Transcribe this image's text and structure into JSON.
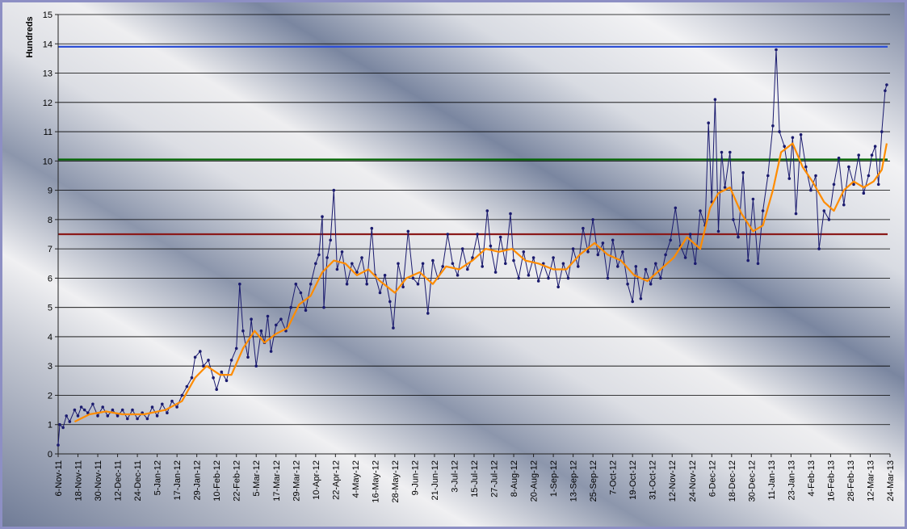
{
  "chart_data": {
    "type": "line",
    "ylabel": "Hundreds",
    "ylim": [
      0,
      15
    ],
    "yticks": [
      "0",
      "1",
      "2",
      "3",
      "4",
      "5",
      "6",
      "7",
      "8",
      "9",
      "10",
      "11",
      "12",
      "13",
      "14",
      "15"
    ],
    "x_start": "2011-11-06",
    "x_end": "2013-03-24",
    "xticks": [
      "6-Nov-11",
      "18-Nov-11",
      "30-Nov-11",
      "12-Dec-11",
      "24-Dec-11",
      "5-Jan-12",
      "17-Jan-12",
      "29-Jan-12",
      "10-Feb-12",
      "22-Feb-12",
      "5-Mar-12",
      "17-Mar-12",
      "29-Mar-12",
      "10-Apr-12",
      "22-Apr-12",
      "4-May-12",
      "16-May-12",
      "28-May-12",
      "9-Jun-12",
      "21-Jun-12",
      "3-Jul-12",
      "15-Jul-12",
      "27-Jul-12",
      "8-Aug-12",
      "20-Aug-12",
      "1-Sep-12",
      "13-Sep-12",
      "25-Sep-12",
      "7-Oct-12",
      "19-Oct-12",
      "31-Oct-12",
      "12-Nov-12",
      "24-Nov-12",
      "6-Dec-12",
      "18-Dec-12",
      "30-Dec-12",
      "11-Jan-13",
      "23-Jan-13",
      "4-Feb-13",
      "16-Feb-13",
      "28-Feb-13",
      "12-Mar-13",
      "24-Mar-13"
    ],
    "grid": true,
    "reference_lines": [
      {
        "value": 13.9,
        "color": "#2d4fd6"
      },
      {
        "value": 10.05,
        "color": "#006400"
      },
      {
        "value": 7.5,
        "color": "#8b1a1a"
      }
    ],
    "series": [
      {
        "style": "line-with-markers",
        "color": "#1a1a6e",
        "points": [
          [
            "2011-11-06",
            0.3
          ],
          [
            "2011-11-07",
            1.0
          ],
          [
            "2011-11-09",
            0.9
          ],
          [
            "2011-11-11",
            1.3
          ],
          [
            "2011-11-13",
            1.1
          ],
          [
            "2011-11-16",
            1.5
          ],
          [
            "2011-11-18",
            1.3
          ],
          [
            "2011-11-20",
            1.6
          ],
          [
            "2011-11-22",
            1.5
          ],
          [
            "2011-11-24",
            1.4
          ],
          [
            "2011-11-27",
            1.7
          ],
          [
            "2011-11-30",
            1.3
          ],
          [
            "2011-12-03",
            1.6
          ],
          [
            "2011-12-06",
            1.3
          ],
          [
            "2011-12-09",
            1.5
          ],
          [
            "2011-12-12",
            1.3
          ],
          [
            "2011-12-15",
            1.5
          ],
          [
            "2011-12-18",
            1.2
          ],
          [
            "2011-12-21",
            1.5
          ],
          [
            "2011-12-24",
            1.2
          ],
          [
            "2011-12-27",
            1.4
          ],
          [
            "2011-12-30",
            1.2
          ],
          [
            "2012-01-02",
            1.6
          ],
          [
            "2012-01-05",
            1.3
          ],
          [
            "2012-01-08",
            1.7
          ],
          [
            "2012-01-11",
            1.4
          ],
          [
            "2012-01-14",
            1.8
          ],
          [
            "2012-01-17",
            1.6
          ],
          [
            "2012-01-20",
            2.0
          ],
          [
            "2012-01-23",
            2.3
          ],
          [
            "2012-01-26",
            2.6
          ],
          [
            "2012-01-28",
            3.3
          ],
          [
            "2012-01-31",
            3.5
          ],
          [
            "2012-02-02",
            3.0
          ],
          [
            "2012-02-05",
            3.2
          ],
          [
            "2012-02-08",
            2.6
          ],
          [
            "2012-02-10",
            2.2
          ],
          [
            "2012-02-13",
            2.8
          ],
          [
            "2012-02-16",
            2.5
          ],
          [
            "2012-02-19",
            3.2
          ],
          [
            "2012-02-22",
            3.6
          ],
          [
            "2012-02-24",
            5.8
          ],
          [
            "2012-02-26",
            4.2
          ],
          [
            "2012-02-29",
            3.3
          ],
          [
            "2012-03-02",
            4.6
          ],
          [
            "2012-03-05",
            3.0
          ],
          [
            "2012-03-08",
            4.2
          ],
          [
            "2012-03-10",
            3.8
          ],
          [
            "2012-03-12",
            4.7
          ],
          [
            "2012-03-14",
            3.5
          ],
          [
            "2012-03-17",
            4.4
          ],
          [
            "2012-03-20",
            4.6
          ],
          [
            "2012-03-23",
            4.2
          ],
          [
            "2012-03-26",
            5.0
          ],
          [
            "2012-03-29",
            5.8
          ],
          [
            "2012-04-01",
            5.5
          ],
          [
            "2012-04-04",
            4.9
          ],
          [
            "2012-04-07",
            5.8
          ],
          [
            "2012-04-10",
            6.5
          ],
          [
            "2012-04-12",
            6.8
          ],
          [
            "2012-04-14",
            8.1
          ],
          [
            "2012-04-15",
            5.0
          ],
          [
            "2012-04-17",
            6.7
          ],
          [
            "2012-04-19",
            7.3
          ],
          [
            "2012-04-21",
            9.0
          ],
          [
            "2012-04-23",
            6.3
          ],
          [
            "2012-04-26",
            6.9
          ],
          [
            "2012-04-29",
            5.8
          ],
          [
            "2012-05-02",
            6.5
          ],
          [
            "2012-05-05",
            6.2
          ],
          [
            "2012-05-08",
            6.7
          ],
          [
            "2012-05-11",
            5.8
          ],
          [
            "2012-05-14",
            7.7
          ],
          [
            "2012-05-16",
            6.1
          ],
          [
            "2012-05-19",
            5.5
          ],
          [
            "2012-05-22",
            6.1
          ],
          [
            "2012-05-25",
            5.2
          ],
          [
            "2012-05-27",
            4.3
          ],
          [
            "2012-05-30",
            6.5
          ],
          [
            "2012-06-02",
            5.7
          ],
          [
            "2012-06-05",
            7.6
          ],
          [
            "2012-06-08",
            6.0
          ],
          [
            "2012-06-11",
            5.8
          ],
          [
            "2012-06-14",
            6.5
          ],
          [
            "2012-06-17",
            4.8
          ],
          [
            "2012-06-20",
            6.6
          ],
          [
            "2012-06-23",
            6.0
          ],
          [
            "2012-06-26",
            6.4
          ],
          [
            "2012-06-29",
            7.5
          ],
          [
            "2012-07-02",
            6.5
          ],
          [
            "2012-07-05",
            6.1
          ],
          [
            "2012-07-08",
            7.0
          ],
          [
            "2012-07-11",
            6.3
          ],
          [
            "2012-07-14",
            6.7
          ],
          [
            "2012-07-17",
            7.5
          ],
          [
            "2012-07-20",
            6.4
          ],
          [
            "2012-07-23",
            8.3
          ],
          [
            "2012-07-25",
            7.1
          ],
          [
            "2012-07-28",
            6.2
          ],
          [
            "2012-07-31",
            7.4
          ],
          [
            "2012-08-03",
            6.5
          ],
          [
            "2012-08-06",
            8.2
          ],
          [
            "2012-08-08",
            6.6
          ],
          [
            "2012-08-11",
            6.0
          ],
          [
            "2012-08-14",
            6.9
          ],
          [
            "2012-08-17",
            6.1
          ],
          [
            "2012-08-20",
            6.7
          ],
          [
            "2012-08-23",
            5.9
          ],
          [
            "2012-08-26",
            6.5
          ],
          [
            "2012-08-29",
            6.0
          ],
          [
            "2012-09-01",
            6.7
          ],
          [
            "2012-09-04",
            5.7
          ],
          [
            "2012-09-07",
            6.5
          ],
          [
            "2012-09-10",
            6.0
          ],
          [
            "2012-09-13",
            7.0
          ],
          [
            "2012-09-16",
            6.4
          ],
          [
            "2012-09-19",
            7.7
          ],
          [
            "2012-09-22",
            6.9
          ],
          [
            "2012-09-25",
            8.0
          ],
          [
            "2012-09-28",
            6.8
          ],
          [
            "2012-10-01",
            7.2
          ],
          [
            "2012-10-04",
            6.0
          ],
          [
            "2012-10-07",
            7.3
          ],
          [
            "2012-10-10",
            6.4
          ],
          [
            "2012-10-13",
            6.9
          ],
          [
            "2012-10-16",
            5.8
          ],
          [
            "2012-10-19",
            5.2
          ],
          [
            "2012-10-21",
            6.4
          ],
          [
            "2012-10-24",
            5.3
          ],
          [
            "2012-10-27",
            6.3
          ],
          [
            "2012-10-30",
            5.8
          ],
          [
            "2012-11-02",
            6.5
          ],
          [
            "2012-11-05",
            6.0
          ],
          [
            "2012-11-08",
            6.8
          ],
          [
            "2012-11-11",
            7.3
          ],
          [
            "2012-11-14",
            8.4
          ],
          [
            "2012-11-17",
            7.1
          ],
          [
            "2012-11-20",
            6.7
          ],
          [
            "2012-11-23",
            7.5
          ],
          [
            "2012-11-26",
            6.5
          ],
          [
            "2012-11-29",
            8.3
          ],
          [
            "2012-12-02",
            7.8
          ],
          [
            "2012-12-04",
            11.3
          ],
          [
            "2012-12-06",
            8.6
          ],
          [
            "2012-12-08",
            12.1
          ],
          [
            "2012-12-10",
            7.6
          ],
          [
            "2012-12-12",
            10.3
          ],
          [
            "2012-12-14",
            9.1
          ],
          [
            "2012-12-17",
            10.3
          ],
          [
            "2012-12-19",
            8.0
          ],
          [
            "2012-12-22",
            7.4
          ],
          [
            "2012-12-25",
            9.6
          ],
          [
            "2012-12-28",
            6.6
          ],
          [
            "2012-12-31",
            8.7
          ],
          [
            "2013-01-03",
            6.5
          ],
          [
            "2013-01-06",
            8.3
          ],
          [
            "2013-01-09",
            9.5
          ],
          [
            "2013-01-12",
            11.2
          ],
          [
            "2013-01-14",
            13.8
          ],
          [
            "2013-01-16",
            11.0
          ],
          [
            "2013-01-19",
            10.5
          ],
          [
            "2013-01-22",
            9.4
          ],
          [
            "2013-01-24",
            10.8
          ],
          [
            "2013-01-26",
            8.2
          ],
          [
            "2013-01-29",
            10.9
          ],
          [
            "2013-02-01",
            9.8
          ],
          [
            "2013-02-04",
            9.0
          ],
          [
            "2013-02-07",
            9.5
          ],
          [
            "2013-02-09",
            7.0
          ],
          [
            "2013-02-12",
            8.3
          ],
          [
            "2013-02-15",
            8.0
          ],
          [
            "2013-02-18",
            9.2
          ],
          [
            "2013-02-21",
            10.1
          ],
          [
            "2013-02-24",
            8.5
          ],
          [
            "2013-02-27",
            9.8
          ],
          [
            "2013-03-02",
            9.2
          ],
          [
            "2013-03-05",
            10.2
          ],
          [
            "2013-03-08",
            8.9
          ],
          [
            "2013-03-11",
            9.5
          ],
          [
            "2013-03-13",
            10.2
          ],
          [
            "2013-03-15",
            10.5
          ],
          [
            "2013-03-17",
            9.2
          ],
          [
            "2013-03-19",
            11.0
          ],
          [
            "2013-03-21",
            12.4
          ],
          [
            "2013-03-22",
            12.6
          ]
        ]
      },
      {
        "style": "line",
        "color": "#ff8c00",
        "points": [
          [
            "2011-11-16",
            1.1
          ],
          [
            "2011-11-25",
            1.35
          ],
          [
            "2011-12-05",
            1.45
          ],
          [
            "2011-12-15",
            1.35
          ],
          [
            "2011-12-28",
            1.35
          ],
          [
            "2012-01-10",
            1.5
          ],
          [
            "2012-01-20",
            1.8
          ],
          [
            "2012-01-28",
            2.6
          ],
          [
            "2012-02-04",
            3.0
          ],
          [
            "2012-02-12",
            2.7
          ],
          [
            "2012-02-19",
            2.7
          ],
          [
            "2012-02-26",
            3.6
          ],
          [
            "2012-03-04",
            4.2
          ],
          [
            "2012-03-10",
            3.8
          ],
          [
            "2012-03-17",
            4.1
          ],
          [
            "2012-03-24",
            4.3
          ],
          [
            "2012-03-31",
            5.1
          ],
          [
            "2012-04-07",
            5.4
          ],
          [
            "2012-04-14",
            6.2
          ],
          [
            "2012-04-21",
            6.6
          ],
          [
            "2012-04-28",
            6.5
          ],
          [
            "2012-05-05",
            6.1
          ],
          [
            "2012-05-12",
            6.3
          ],
          [
            "2012-05-19",
            5.9
          ],
          [
            "2012-05-28",
            5.5
          ],
          [
            "2012-06-04",
            6.0
          ],
          [
            "2012-06-12",
            6.2
          ],
          [
            "2012-06-20",
            5.8
          ],
          [
            "2012-06-28",
            6.4
          ],
          [
            "2012-07-06",
            6.3
          ],
          [
            "2012-07-14",
            6.6
          ],
          [
            "2012-07-22",
            7.0
          ],
          [
            "2012-07-30",
            6.9
          ],
          [
            "2012-08-07",
            7.0
          ],
          [
            "2012-08-15",
            6.6
          ],
          [
            "2012-08-23",
            6.5
          ],
          [
            "2012-09-01",
            6.3
          ],
          [
            "2012-09-09",
            6.3
          ],
          [
            "2012-09-17",
            6.8
          ],
          [
            "2012-09-26",
            7.2
          ],
          [
            "2012-10-04",
            6.8
          ],
          [
            "2012-10-12",
            6.6
          ],
          [
            "2012-10-20",
            6.1
          ],
          [
            "2012-10-28",
            5.9
          ],
          [
            "2012-11-05",
            6.3
          ],
          [
            "2012-11-13",
            6.7
          ],
          [
            "2012-11-21",
            7.4
          ],
          [
            "2012-11-29",
            7.0
          ],
          [
            "2012-12-05",
            8.4
          ],
          [
            "2012-12-10",
            8.9
          ],
          [
            "2012-12-17",
            9.1
          ],
          [
            "2012-12-24",
            8.2
          ],
          [
            "2012-12-31",
            7.6
          ],
          [
            "2013-01-06",
            7.8
          ],
          [
            "2013-01-12",
            9.0
          ],
          [
            "2013-01-17",
            10.3
          ],
          [
            "2013-01-24",
            10.6
          ],
          [
            "2013-01-30",
            9.8
          ],
          [
            "2013-02-05",
            9.3
          ],
          [
            "2013-02-12",
            8.6
          ],
          [
            "2013-02-18",
            8.3
          ],
          [
            "2013-02-24",
            9.0
          ],
          [
            "2013-03-02",
            9.3
          ],
          [
            "2013-03-08",
            9.1
          ],
          [
            "2013-03-14",
            9.3
          ],
          [
            "2013-03-19",
            9.7
          ],
          [
            "2013-03-22",
            10.6
          ]
        ]
      }
    ]
  }
}
